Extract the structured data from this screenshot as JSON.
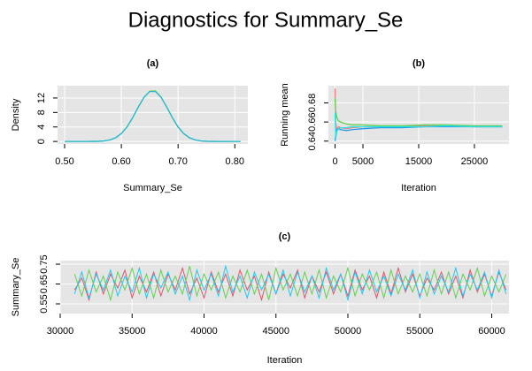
{
  "title": "Diagnostics for Summary_Se",
  "chart_data": [
    {
      "type": "line",
      "title": "(a)",
      "x_label": "Summary_Se",
      "y_label": "Density",
      "x": [
        0.5,
        0.51,
        0.52,
        0.53,
        0.54,
        0.55,
        0.56,
        0.57,
        0.58,
        0.59,
        0.6,
        0.61,
        0.62,
        0.63,
        0.64,
        0.65,
        0.66,
        0.67,
        0.68,
        0.69,
        0.7,
        0.71,
        0.72,
        0.73,
        0.74,
        0.75,
        0.76,
        0.77,
        0.78,
        0.79,
        0.8,
        0.81
      ],
      "series": [
        {
          "color": "#8fd14f",
          "values": [
            0,
            0,
            0,
            0,
            0,
            0.02,
            0.05,
            0.16,
            0.44,
            1.04,
            2.18,
            4.01,
            6.59,
            9.53,
            12.19,
            13.9,
            14.0,
            12.3,
            9.5,
            6.5,
            3.9,
            2.1,
            1.0,
            0.42,
            0.15,
            0.05,
            0.02,
            0,
            0,
            0,
            0,
            0
          ]
        },
        {
          "color": "#20b8d8",
          "values": [
            0,
            0,
            0,
            0,
            0,
            0.02,
            0.05,
            0.16,
            0.44,
            1.04,
            2.18,
            4.01,
            6.59,
            9.53,
            12.19,
            13.79,
            13.79,
            12.19,
            9.53,
            6.59,
            4.01,
            2.18,
            1.04,
            0.44,
            0.16,
            0.05,
            0.02,
            0,
            0,
            0,
            0,
            0
          ]
        }
      ],
      "xlim": [
        0.4875,
        0.823
      ],
      "ylim": [
        -0.7,
        15.4
      ],
      "xticks": [
        {
          "value": 0.5,
          "label": "0.50"
        },
        {
          "value": 0.6,
          "label": "0.60"
        },
        {
          "value": 0.7,
          "label": "0.70"
        },
        {
          "value": 0.8,
          "label": "0.80"
        }
      ],
      "yticks": [
        0,
        4,
        8,
        12
      ],
      "grid": true,
      "panel_color": "#e5e5e5"
    },
    {
      "type": "line",
      "title": "(b)",
      "x_label": "Iteration",
      "y_label": "Running mean",
      "x": [
        1,
        100,
        300,
        600,
        1000,
        2000,
        3000,
        5000,
        8000,
        12000,
        16000,
        20000,
        25000,
        30000
      ],
      "series": [
        {
          "color": "#f08080",
          "values": [
            0.695,
            0.66,
            0.652,
            0.655,
            0.654,
            0.653,
            0.654,
            0.655,
            0.655,
            0.655,
            0.656,
            0.656,
            0.655,
            0.655
          ]
        },
        {
          "color": "#61d04f",
          "values": [
            0.685,
            0.672,
            0.665,
            0.661,
            0.66,
            0.658,
            0.657,
            0.657,
            0.656,
            0.656,
            0.657,
            0.657,
            0.656,
            0.656
          ]
        },
        {
          "color": "#2297e6",
          "values": [
            0.64,
            0.648,
            0.652,
            0.653,
            0.652,
            0.651,
            0.652,
            0.653,
            0.654,
            0.654,
            0.655,
            0.655,
            0.655,
            0.655
          ]
        },
        {
          "color": "#28e2e5",
          "values": [
            0.67,
            0.642,
            0.65,
            0.653,
            0.654,
            0.654,
            0.655,
            0.655,
            0.655,
            0.655,
            0.655,
            0.656,
            0.655,
            0.655
          ]
        }
      ],
      "xlim": [
        -1200,
        31200
      ],
      "ylim": [
        0.637,
        0.698
      ],
      "xticks": [
        0,
        5000,
        15000,
        25000
      ],
      "yticks": [
        0.64,
        0.66,
        0.68
      ],
      "grid": true,
      "panel_color": "#e5e5e5"
    },
    {
      "type": "line",
      "title": "(c)",
      "x_label": "Iteration",
      "y_label": "Summary_Se",
      "x": [
        31000,
        31500,
        32000,
        32500,
        33000,
        33500,
        34000,
        34500,
        35000,
        35500,
        36000,
        36500,
        37000,
        37500,
        38000,
        38500,
        39000,
        39500,
        40000,
        40500,
        41000,
        41500,
        42000,
        42500,
        43000,
        43500,
        44000,
        44500,
        45000,
        45500,
        46000,
        46500,
        47000,
        47500,
        48000,
        48500,
        49000,
        49500,
        50000,
        50500,
        51000,
        51500,
        52000,
        52500,
        53000,
        53500,
        54000,
        54500,
        55000,
        55500,
        56000,
        56500,
        57000,
        57500,
        58000,
        58500,
        59000,
        59500,
        60000,
        60500,
        61000
      ],
      "series": [
        {
          "color": "#df536b",
          "values": [
            0.62,
            0.68,
            0.57,
            0.71,
            0.6,
            0.7,
            0.63,
            0.72,
            0.58,
            0.69,
            0.61,
            0.71,
            0.59,
            0.7,
            0.62,
            0.73,
            0.6,
            0.68,
            0.58,
            0.71,
            0.61,
            0.7,
            0.59,
            0.72,
            0.62,
            0.69,
            0.57,
            0.71,
            0.6,
            0.7,
            0.63,
            0.72,
            0.58,
            0.69,
            0.61,
            0.71,
            0.6,
            0.7,
            0.59,
            0.72,
            0.62,
            0.69,
            0.58,
            0.71,
            0.6,
            0.73,
            0.61,
            0.7,
            0.59,
            0.68,
            0.62,
            0.71,
            0.6,
            0.69,
            0.58,
            0.72,
            0.61,
            0.7,
            0.59,
            0.71,
            0.62
          ]
        },
        {
          "color": "#61d04f",
          "values": [
            0.7,
            0.59,
            0.72,
            0.61,
            0.69,
            0.57,
            0.71,
            0.62,
            0.73,
            0.6,
            0.7,
            0.58,
            0.72,
            0.61,
            0.69,
            0.6,
            0.74,
            0.59,
            0.7,
            0.62,
            0.71,
            0.58,
            0.69,
            0.61,
            0.72,
            0.6,
            0.7,
            0.57,
            0.73,
            0.62,
            0.7,
            0.59,
            0.71,
            0.6,
            0.72,
            0.58,
            0.69,
            0.61,
            0.73,
            0.59,
            0.7,
            0.62,
            0.71,
            0.58,
            0.72,
            0.6,
            0.69,
            0.61,
            0.7,
            0.59,
            0.72,
            0.6,
            0.71,
            0.58,
            0.7,
            0.62,
            0.73,
            0.59,
            0.69,
            0.61,
            0.7
          ]
        },
        {
          "color": "#1ec8f0",
          "values": [
            0.6,
            0.71,
            0.58,
            0.7,
            0.62,
            0.72,
            0.59,
            0.69,
            0.61,
            0.73,
            0.58,
            0.7,
            0.63,
            0.71,
            0.6,
            0.69,
            0.57,
            0.72,
            0.62,
            0.7,
            0.59,
            0.74,
            0.61,
            0.69,
            0.58,
            0.71,
            0.62,
            0.7,
            0.6,
            0.72,
            0.59,
            0.71,
            0.61,
            0.69,
            0.58,
            0.73,
            0.62,
            0.7,
            0.57,
            0.71,
            0.6,
            0.72,
            0.61,
            0.69,
            0.59,
            0.7,
            0.62,
            0.72,
            0.58,
            0.71,
            0.6,
            0.69,
            0.61,
            0.73,
            0.59,
            0.7,
            0.62,
            0.71,
            0.58,
            0.72,
            0.6
          ]
        }
      ],
      "xlim": [
        30000,
        61200
      ],
      "ylim": [
        0.501,
        0.768
      ],
      "xticks": [
        30000,
        35000,
        40000,
        45000,
        50000,
        55000,
        60000
      ],
      "yticks": [
        0.55,
        0.65,
        0.75
      ],
      "grid": true,
      "panel_color": "#e5e5e5"
    }
  ]
}
